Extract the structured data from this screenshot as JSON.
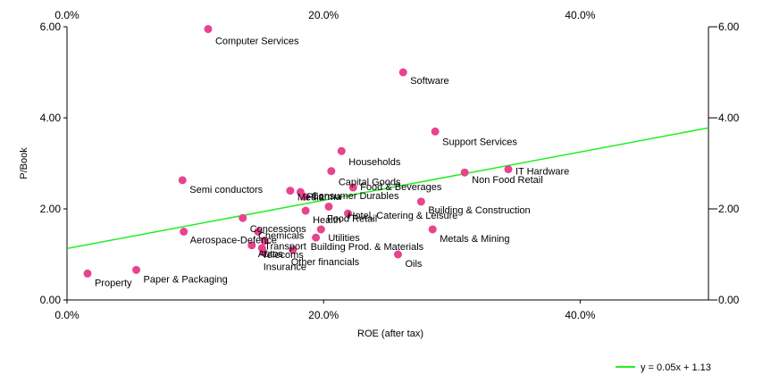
{
  "chart_data": {
    "type": "scatter",
    "xlabel": "ROE (after tax)",
    "ylabel": "P/Book",
    "xlim": [
      0,
      50
    ],
    "ylim": [
      0,
      6
    ],
    "x_unit": "percent",
    "x_ticks": [
      "0.0%",
      "20.0%",
      "40.0%"
    ],
    "y_ticks": [
      "0.00",
      "2.00",
      "4.00",
      "6.00"
    ],
    "x_tick_values": [
      0,
      20,
      40
    ],
    "y_tick_values": [
      0,
      2,
      4,
      6
    ],
    "grid": false,
    "legend_position": "bottom-right",
    "colors": {
      "points": "#e8438e",
      "trendline": "#22ee22",
      "axis": "#000000"
    },
    "trendline": {
      "label": "y = 0.05x + 1.13",
      "slope": 0.053,
      "intercept": 1.13
    },
    "points": [
      {
        "label": "Computer Services",
        "x": 11.0,
        "y": 5.95
      },
      {
        "label": "Software",
        "x": 26.2,
        "y": 5.0
      },
      {
        "label": "Support Services",
        "x": 28.7,
        "y": 3.7
      },
      {
        "label": "Households",
        "x": 21.4,
        "y": 3.27
      },
      {
        "label": "IT Hardware",
        "x": 34.4,
        "y": 2.87
      },
      {
        "label": "Capital Goods",
        "x": 20.6,
        "y": 2.83
      },
      {
        "label": "Non Food Retail",
        "x": 31.0,
        "y": 2.8
      },
      {
        "label": "Semi conductors",
        "x": 9.0,
        "y": 2.63
      },
      {
        "label": "Media",
        "x": 17.4,
        "y": 2.4
      },
      {
        "label": "Food & Beverages",
        "x": 22.3,
        "y": 2.47
      },
      {
        "label": "Consumer Durables",
        "x": 18.5,
        "y": 2.27
      },
      {
        "label": "Pharma",
        "x": 18.2,
        "y": 2.37
      },
      {
        "label": "Building & Construction",
        "x": 27.6,
        "y": 2.16
      },
      {
        "label": "Hotel, Catering & Leisure",
        "x": 21.9,
        "y": 1.9
      },
      {
        "label": "Health",
        "x": 18.6,
        "y": 1.96
      },
      {
        "label": "Food Retail",
        "x": 20.4,
        "y": 2.05
      },
      {
        "label": "Concessions",
        "x": 13.7,
        "y": 1.8
      },
      {
        "label": "Utilities",
        "x": 19.8,
        "y": 1.55
      },
      {
        "label": "Metals & Mining",
        "x": 28.5,
        "y": 1.55
      },
      {
        "label": "Aerospace-Defence",
        "x": 9.1,
        "y": 1.5
      },
      {
        "label": "Chemicals",
        "x": 14.9,
        "y": 1.5
      },
      {
        "label": "Building Prod. & Materials",
        "x": 19.4,
        "y": 1.37
      },
      {
        "label": "Transport",
        "x": 15.4,
        "y": 1.3
      },
      {
        "label": "Autos",
        "x": 14.4,
        "y": 1.2
      },
      {
        "label": "Telecoms",
        "x": 15.2,
        "y": 1.14
      },
      {
        "label": "Other financials",
        "x": 17.6,
        "y": 1.1
      },
      {
        "label": "Insurance",
        "x": 15.3,
        "y": 1.05
      },
      {
        "label": "Oils",
        "x": 25.8,
        "y": 1.0
      },
      {
        "label": "Property",
        "x": 1.6,
        "y": 0.58
      },
      {
        "label": "Paper & Packaging",
        "x": 5.4,
        "y": 0.66
      }
    ]
  }
}
